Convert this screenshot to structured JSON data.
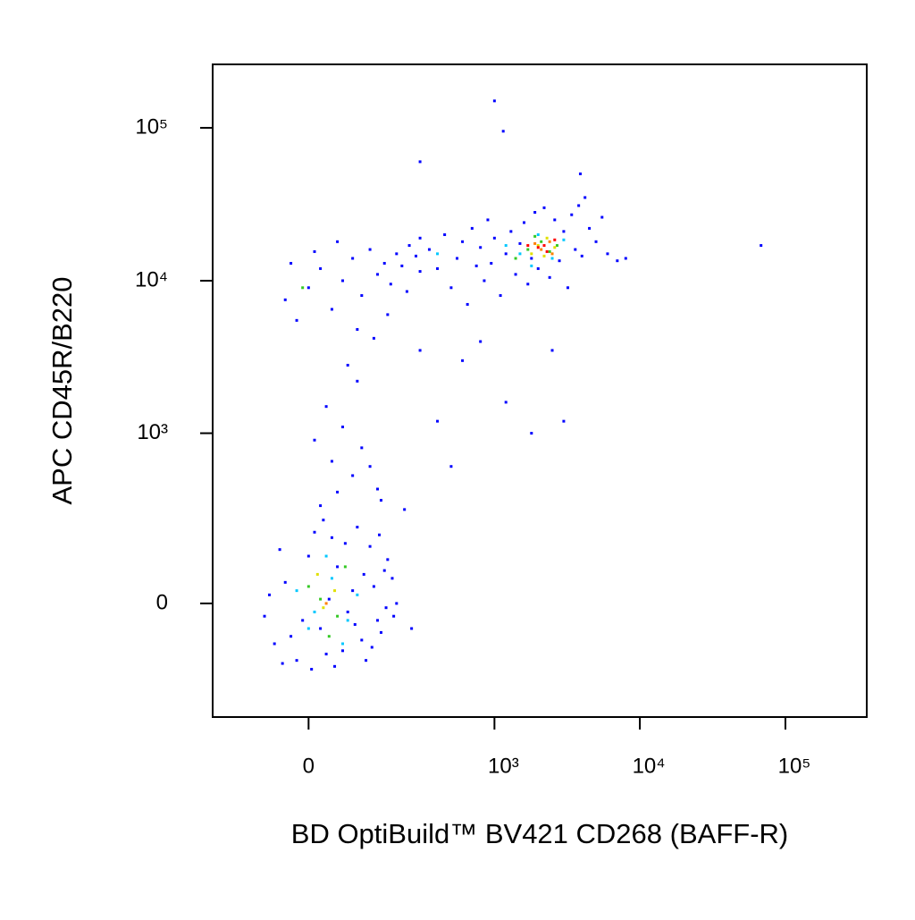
{
  "chart_data": {
    "type": "scatter",
    "x_label": "BD OptiBuild™ BV421 CD268 (BAFF-R)",
    "y_label": "APC CD45R/B220",
    "x_scale": "biexponential",
    "y_scale": "biexponential",
    "xlim": [
      -230,
      362000
    ],
    "ylim": [
      -415,
      260000
    ],
    "xticks": [
      0,
      {
        "value": 1000,
        "label": "10³"
      },
      {
        "value": 10000,
        "label": "10⁴"
      },
      {
        "value": 100000,
        "label": "10⁵"
      }
    ],
    "yticks": [
      0,
      {
        "value": 1000,
        "label": "10³"
      },
      {
        "value": 10000,
        "label": "10⁴"
      },
      {
        "value": 100000,
        "label": "10⁵"
      }
    ],
    "groups": [
      {
        "color": "#0000ff",
        "x": [
          -60,
          -40,
          -20,
          0,
          20,
          40,
          60,
          80,
          100,
          120,
          140,
          160,
          -70,
          -30,
          10,
          30,
          50,
          70,
          90,
          110,
          130,
          150,
          170,
          190,
          -50,
          -10,
          25,
          45,
          65,
          85,
          105,
          125,
          145,
          165,
          185,
          -80,
          -45,
          5,
          35,
          200,
          20,
          50,
          80,
          40,
          100,
          60,
          30,
          120,
          140,
          10,
          90,
          70,
          150,
          230,
          260,
          -40,
          -20,
          0,
          20,
          40,
          60,
          80,
          100,
          120,
          140,
          160,
          180,
          200,
          220,
          250,
          280,
          300,
          -30,
          10,
          50,
          90,
          130,
          170,
          240,
          300,
          350,
          400,
          450,
          500,
          550,
          600,
          650,
          700,
          750,
          800,
          850,
          900,
          950,
          1000,
          1100,
          1200,
          1300,
          1400,
          1500,
          1600,
          1700,
          1800,
          1900,
          2000,
          2200,
          2400,
          2600,
          2800,
          3000,
          3200,
          3400,
          3600,
          3800,
          4000,
          4500,
          5000,
          5500,
          6000,
          4200,
          3900,
          1000,
          1150,
          300,
          68000,
          8000,
          7000,
          500,
          400,
          1800,
          600,
          1200,
          2500,
          3000,
          800,
          300
        ],
        "y": [
          -100,
          50,
          -150,
          120,
          -60,
          180,
          -120,
          30,
          -90,
          150,
          -40,
          80,
          20,
          -80,
          200,
          -130,
          90,
          -20,
          220,
          -150,
          40,
          -70,
          110,
          -30,
          140,
          -40,
          250,
          -170,
          160,
          -50,
          70,
          -110,
          190,
          -10,
          60,
          -30,
          -160,
          -180,
          10,
          0,
          320,
          400,
          520,
          650,
          800,
          1100,
          1500,
          600,
          420,
          900,
          2200,
          2800,
          350,
          300,
          -60,
          7500,
          5500,
          9000,
          12000,
          6500,
          10000,
          14000,
          8000,
          16000,
          11000,
          13000,
          9500,
          15000,
          12500,
          17000,
          14500,
          11500,
          13000,
          15500,
          18000,
          4800,
          4200,
          6000,
          8500,
          19000,
          16000,
          12000,
          20000,
          9000,
          14000,
          18000,
          7000,
          22000,
          12500,
          16500,
          10000,
          25000,
          13000,
          19000,
          8000,
          15000,
          21000,
          11000,
          17500,
          24000,
          9500,
          14000,
          28000,
          12000,
          30000,
          10500,
          25000,
          13500,
          21000,
          9000,
          27000,
          16000,
          31000,
          14500,
          22000,
          18000,
          26000,
          15000,
          35000,
          50000,
          150000,
          95000,
          60000,
          17000,
          14000,
          13500,
          600,
          1200,
          1000,
          3000,
          1600,
          3500,
          1200,
          4000,
          3500
        ]
      },
      {
        "color": "#00c8ff",
        "x": [
          10,
          40,
          -20,
          70,
          30,
          60,
          90,
          0,
          1500,
          2000,
          2500,
          1200,
          3000,
          1800,
          400
        ],
        "y": [
          -20,
          60,
          30,
          -40,
          120,
          -100,
          20,
          -60,
          15000,
          20000,
          14000,
          17000,
          18500,
          12500,
          15000
        ]
      },
      {
        "color": "#34c924",
        "x": [
          20,
          50,
          0,
          35,
          65,
          1700,
          2100,
          2400,
          1900,
          2700,
          1400,
          -10
        ],
        "y": [
          10,
          -30,
          40,
          -80,
          90,
          16000,
          18000,
          15500,
          19500,
          17000,
          14000,
          9000
        ]
      },
      {
        "color": "#e0e000",
        "x": [
          25,
          45,
          15,
          2000,
          2300,
          1800,
          2600,
          2200
        ],
        "y": [
          -10,
          30,
          70,
          17000,
          19000,
          15000,
          16500,
          14500
        ]
      },
      {
        "color": "#ff8000",
        "x": [
          30,
          2100,
          2400,
          1900,
          2500
        ],
        "y": [
          0,
          16000,
          18000,
          17500,
          15000
        ]
      },
      {
        "color": "#ff0000",
        "x": [
          2200,
          2000,
          2300,
          2600,
          1700
        ],
        "y": [
          17000,
          16500,
          15500,
          18500,
          17000
        ]
      }
    ]
  }
}
